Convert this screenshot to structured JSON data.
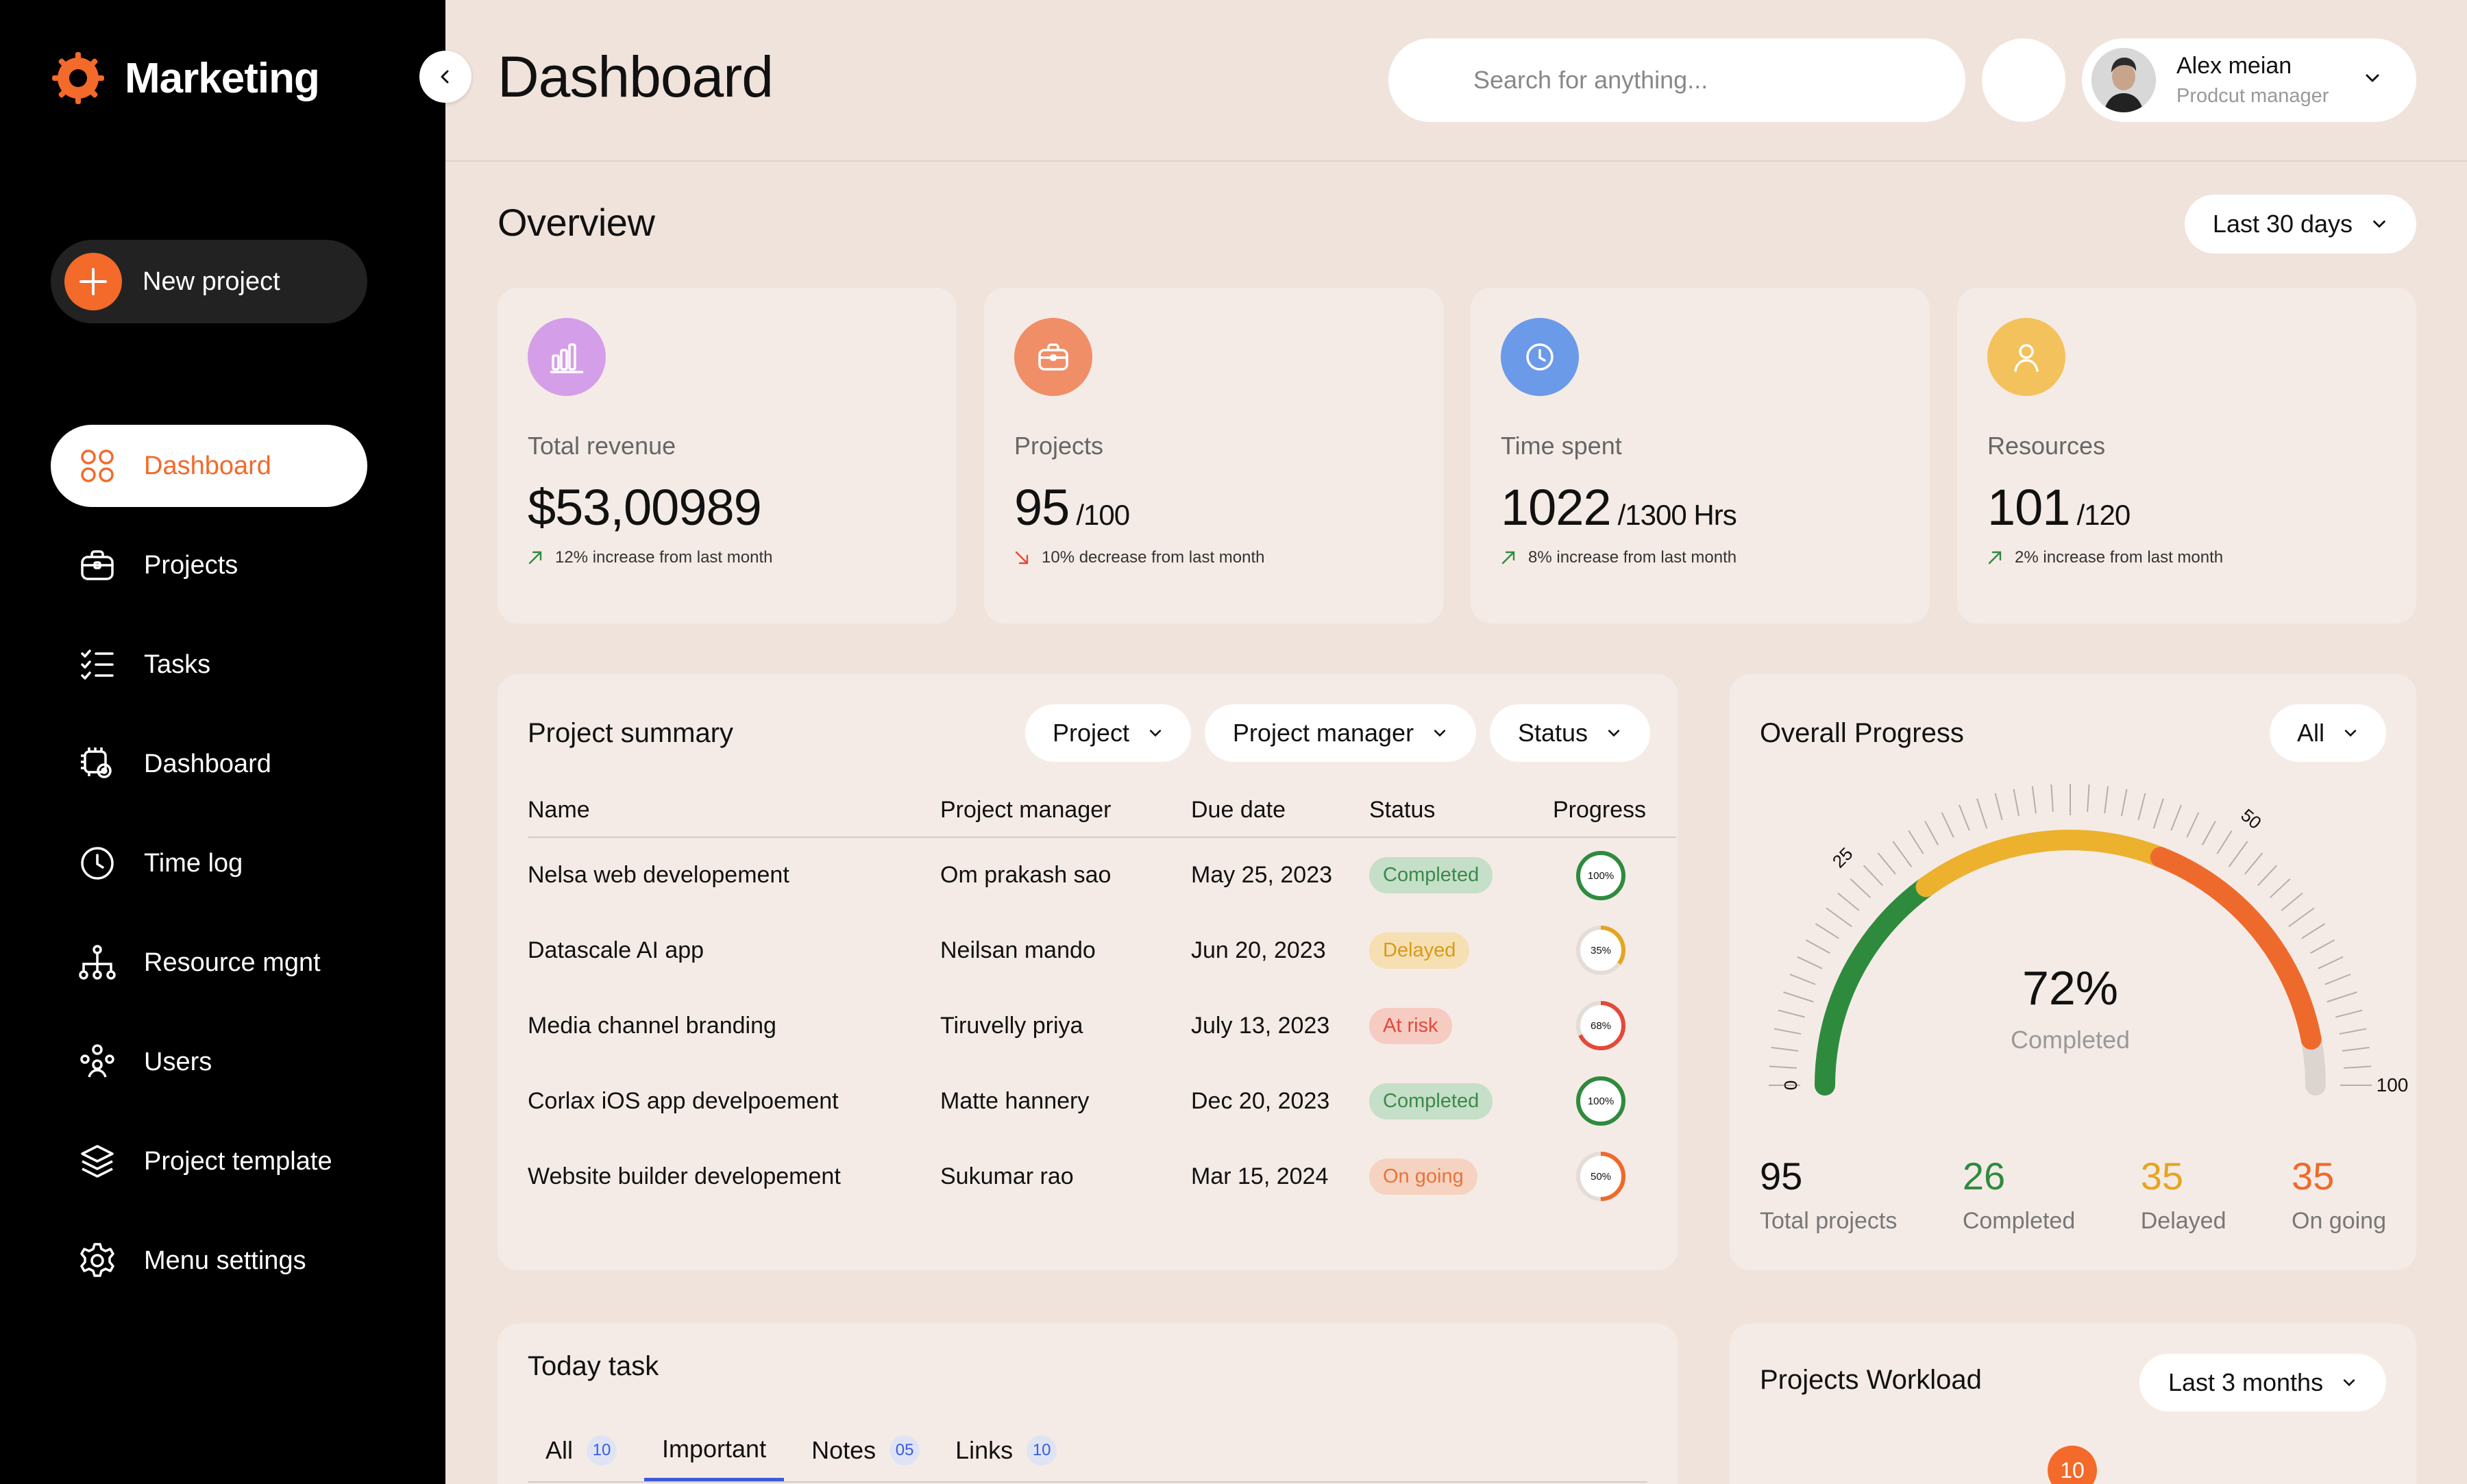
{
  "app": {
    "name": "Marketing"
  },
  "sidebar": {
    "new_project": "New project",
    "items": [
      {
        "label": "Dashboard",
        "icon": "grid-icon",
        "active": true
      },
      {
        "label": "Projects",
        "icon": "briefcase-icon"
      },
      {
        "label": "Tasks",
        "icon": "task-list-icon"
      },
      {
        "label": "Dashboard",
        "icon": "gear-chip-icon"
      },
      {
        "label": "Time log",
        "icon": "clock-icon"
      },
      {
        "label": "Resource mgnt",
        "icon": "hierarchy-icon"
      },
      {
        "label": "Users",
        "icon": "users-icon"
      },
      {
        "label": "Project template",
        "icon": "layers-icon"
      },
      {
        "label": "Menu settings",
        "icon": "settings-icon"
      }
    ]
  },
  "header": {
    "title": "Dashboard",
    "search_placeholder": "Search for anything...",
    "user": {
      "name": "Alex meian",
      "role": "Prodcut manager"
    }
  },
  "overview": {
    "title": "Overview",
    "range": "Last 30 days",
    "cards": [
      {
        "label": "Total revenue",
        "value": "$53,00989",
        "sub": "",
        "trend": "12% increase from last month",
        "direction": "up",
        "icon": "bar-chart-icon",
        "color": "#d59ee8"
      },
      {
        "label": "Projects",
        "value": "95",
        "sub": "/100",
        "trend": "10% decrease from last month",
        "direction": "down",
        "icon": "briefcase-icon",
        "color": "#f08e68"
      },
      {
        "label": "Time spent",
        "value": "1022",
        "sub": "/1300 Hrs",
        "trend": "8% increase from last month",
        "direction": "up",
        "icon": "clock-icon",
        "color": "#6b9ae8"
      },
      {
        "label": "Resources",
        "value": "101",
        "sub": "/120",
        "trend": "2% increase from last month",
        "direction": "up",
        "icon": "user-icon",
        "color": "#f3c25c"
      }
    ]
  },
  "summary": {
    "title": "Project summary",
    "filters": [
      "Project",
      "Project manager",
      "Status"
    ],
    "columns": [
      "Name",
      "Project manager",
      "Due date",
      "Status",
      "Progress"
    ],
    "rows": [
      {
        "name": "Nelsa web developement",
        "manager": "Om prakash sao",
        "due": "May 25, 2023",
        "status": "Completed",
        "status_key": "completed",
        "progress": 100,
        "progress_label": "100%"
      },
      {
        "name": "Datascale AI app",
        "manager": "Neilsan mando",
        "due": "Jun 20, 2023",
        "status": "Delayed",
        "status_key": "delayed",
        "progress": 35,
        "progress_label": "35%"
      },
      {
        "name": "Media channel branding",
        "manager": "Tiruvelly priya",
        "due": "July 13, 2023",
        "status": "At risk",
        "status_key": "risk",
        "progress": 68,
        "progress_label": "68%"
      },
      {
        "name": "Corlax iOS app develpoement",
        "manager": "Matte hannery",
        "due": "Dec 20, 2023",
        "status": "Completed",
        "status_key": "completed",
        "progress": 100,
        "progress_label": "100%"
      },
      {
        "name": "Website builder developement",
        "manager": "Sukumar rao",
        "due": "Mar 15, 2024",
        "status": "On going",
        "status_key": "ongoing",
        "progress": 50,
        "progress_label": "50%"
      }
    ]
  },
  "progress": {
    "title": "Overall Progress",
    "filter": "All",
    "percent": "72%",
    "percent_value": 72,
    "caption": "Completed",
    "ticks": [
      "0",
      "25",
      "50",
      "100"
    ],
    "stats": [
      {
        "num": "95",
        "label": "Total projects",
        "color": "#111111"
      },
      {
        "num": "26",
        "label": "Completed",
        "color": "#2e8b3e"
      },
      {
        "num": "35",
        "label": "Delayed",
        "color": "#e5a520"
      },
      {
        "num": "35",
        "label": "On going",
        "color": "#ee6a2c"
      }
    ]
  },
  "today": {
    "title": "Today task",
    "tabs": [
      {
        "label": "All",
        "count": "10"
      },
      {
        "label": "Important",
        "count": ""
      },
      {
        "label": "Notes",
        "count": "05"
      },
      {
        "label": "Links",
        "count": "10"
      }
    ]
  },
  "workload": {
    "title": "Projects Workload",
    "range": "Last 3 months",
    "marker": "10"
  },
  "colors": {
    "accent": "#f36a2a",
    "background": "#f0e3dc",
    "card": "#f5ebe6"
  }
}
